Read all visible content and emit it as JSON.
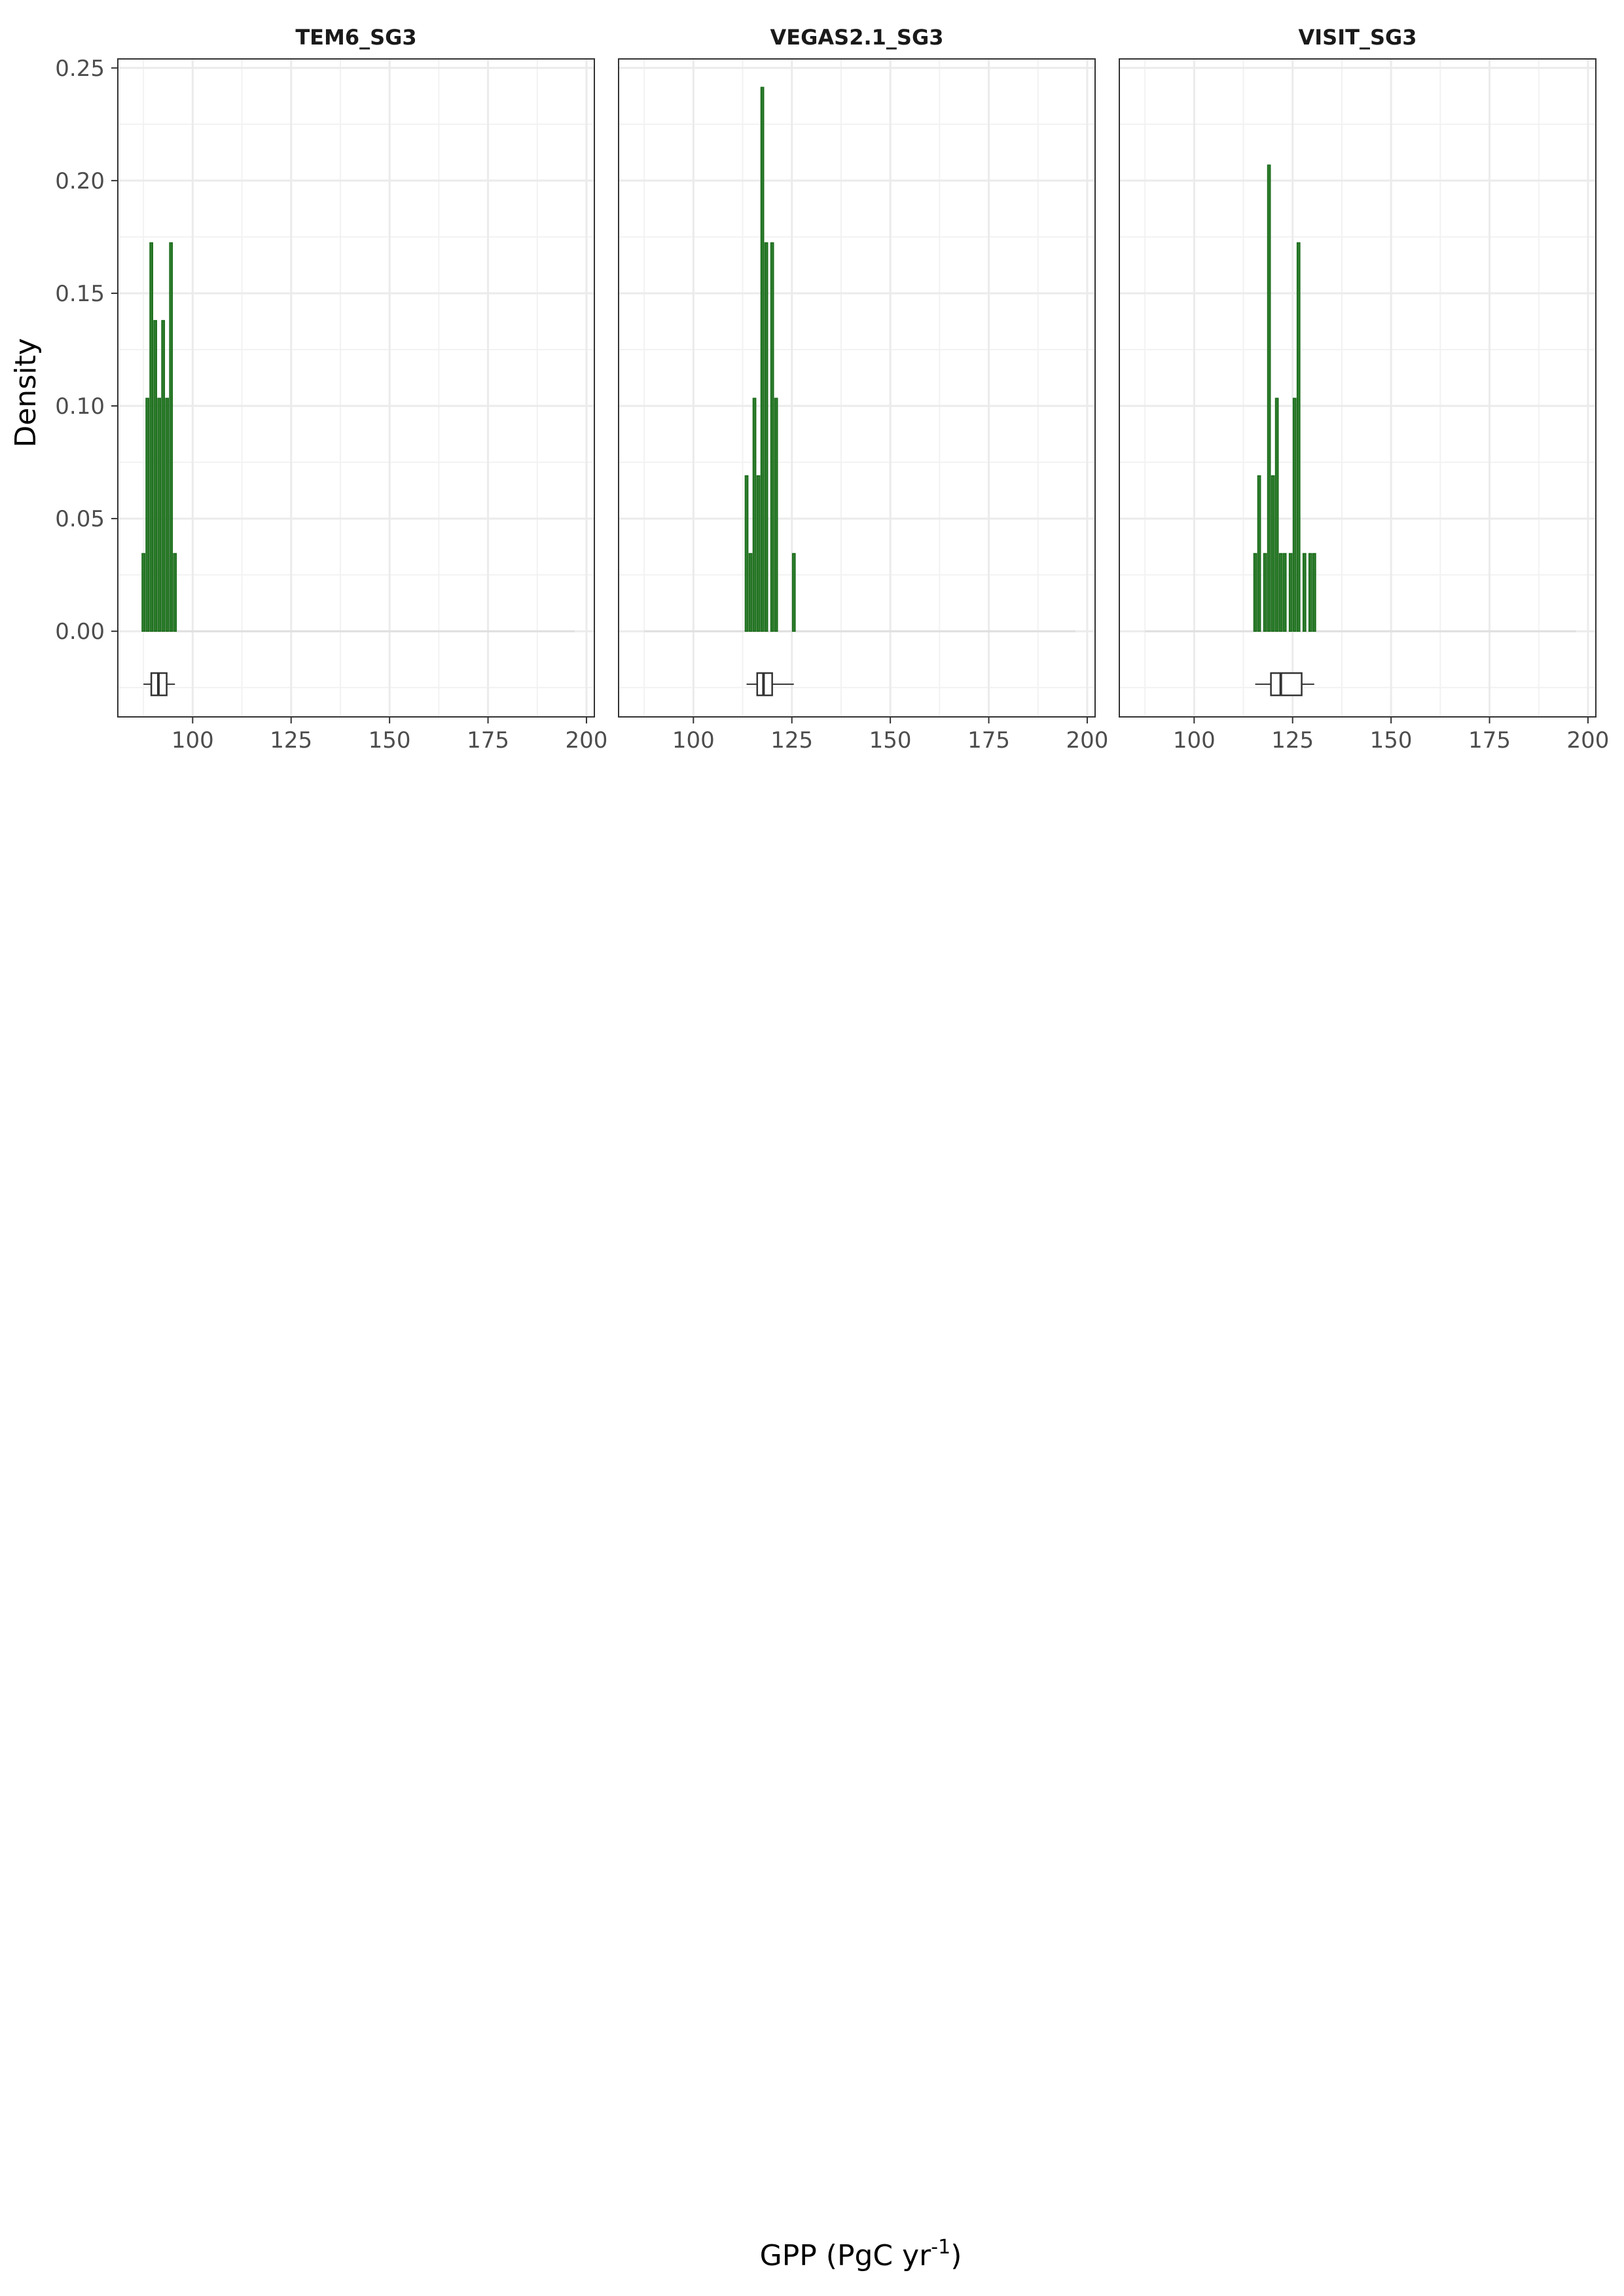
{
  "chart_data": {
    "type": "bar",
    "xlabel": "GPP (PgC yr",
    "xlabel_superscript": "-1",
    "xlabel_close": ")",
    "ylabel": "Density",
    "xlim": [
      81,
      202
    ],
    "ylim": [
      -0.038,
      0.254
    ],
    "x_ticks": [
      100,
      125,
      150,
      175,
      200
    ],
    "y_ticks": [
      0.0,
      0.05,
      0.1,
      0.15,
      0.2,
      0.25
    ],
    "y_tick_labels": [
      "0.00",
      "0.05",
      "0.10",
      "0.15",
      "0.20",
      "0.25"
    ],
    "grid": true,
    "bar_color": "#1a6b1a",
    "bar_fill": "#2e7d2e",
    "panels": [
      {
        "title": "TEM6_SG3",
        "bars": [
          {
            "x": 87.5,
            "y": 0.0345
          },
          {
            "x": 88.5,
            "y": 0.1034
          },
          {
            "x": 89.5,
            "y": 0.1724
          },
          {
            "x": 90.5,
            "y": 0.1379
          },
          {
            "x": 91.5,
            "y": 0.1034
          },
          {
            "x": 92.5,
            "y": 0.1379
          },
          {
            "x": 93.5,
            "y": 0.1034
          },
          {
            "x": 94.5,
            "y": 0.1724
          },
          {
            "x": 95.5,
            "y": 0.0345
          }
        ],
        "boxplot": {
          "min": 87.5,
          "q1": 89.5,
          "median": 91.3,
          "q3": 93.4,
          "max": 95.5
        }
      },
      {
        "title": "VEGAS2.1_SG3",
        "bars": [
          {
            "x": 113.5,
            "y": 0.069
          },
          {
            "x": 114.5,
            "y": 0.0345
          },
          {
            "x": 115.5,
            "y": 0.1034
          },
          {
            "x": 116.5,
            "y": 0.069
          },
          {
            "x": 117.5,
            "y": 0.2414
          },
          {
            "x": 118.5,
            "y": 0.1724
          },
          {
            "x": 120,
            "y": 0.1724
          },
          {
            "x": 121,
            "y": 0.1034
          },
          {
            "x": 125.5,
            "y": 0.0345
          }
        ],
        "boxplot": {
          "min": 113.5,
          "q1": 116.2,
          "median": 117.8,
          "q3": 120.0,
          "max": 125.5
        }
      },
      {
        "title": "VISIT_SG3",
        "bars": [
          {
            "x": 115.5,
            "y": 0.0345
          },
          {
            "x": 116.5,
            "y": 0.069
          },
          {
            "x": 118,
            "y": 0.0345
          },
          {
            "x": 119,
            "y": 0.2069
          },
          {
            "x": 120,
            "y": 0.069
          },
          {
            "x": 121,
            "y": 0.1034
          },
          {
            "x": 122,
            "y": 0.0345
          },
          {
            "x": 123,
            "y": 0.0345
          },
          {
            "x": 124.5,
            "y": 0.0345
          },
          {
            "x": 125.5,
            "y": 0.1034
          },
          {
            "x": 126.5,
            "y": 0.1724
          },
          {
            "x": 128,
            "y": 0.0345
          },
          {
            "x": 129.5,
            "y": 0.0345
          },
          {
            "x": 130.5,
            "y": 0.0345
          }
        ],
        "boxplot": {
          "min": 115.5,
          "q1": 119.5,
          "median": 122.0,
          "q3": 127.3,
          "max": 130.5
        }
      }
    ]
  }
}
